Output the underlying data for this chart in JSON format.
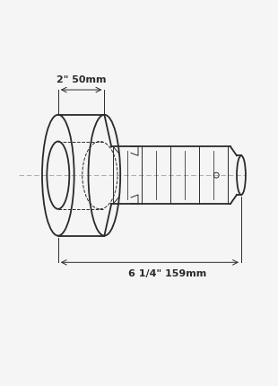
{
  "bg_color": "#f5f5f5",
  "line_color": "#2a2a2a",
  "dim_color": "#2a2a2a",
  "text_color": "#2a2a2a",
  "dim_top": "2\" 50mm",
  "dim_bot": "6 1/4\" 159mm",
  "figsize": [
    3.1,
    4.3
  ],
  "dpi": 100
}
